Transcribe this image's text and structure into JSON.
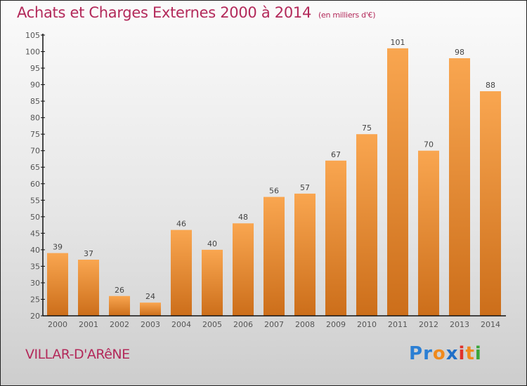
{
  "chart_data": {
    "type": "bar",
    "title": "Achats et Charges Externes 2000 à 2014",
    "subtitle": "(en milliers d'€)",
    "xlabel": "",
    "ylabel": "",
    "categories": [
      "2000",
      "2001",
      "2002",
      "2003",
      "2004",
      "2005",
      "2006",
      "2007",
      "2008",
      "2009",
      "2010",
      "2011",
      "2012",
      "2013",
      "2014"
    ],
    "values": [
      39,
      37,
      26,
      24,
      46,
      40,
      48,
      56,
      57,
      67,
      75,
      101,
      70,
      98,
      88
    ],
    "ylim": [
      20,
      105
    ],
    "yticks": [
      20,
      25,
      30,
      35,
      40,
      45,
      50,
      55,
      60,
      65,
      70,
      75,
      80,
      85,
      90,
      95,
      100,
      105
    ],
    "grid": false,
    "legend": "none",
    "bar_color_top": "#f9a650",
    "bar_color_bottom": "#cc6e1a"
  },
  "footer": {
    "city": "VILLAR-D'ARêNE",
    "logo_letters": [
      {
        "ch": "P",
        "color": "#2b7fd4"
      },
      {
        "ch": "r",
        "color": "#2b7fd4"
      },
      {
        "ch": "o",
        "color": "#f08a1c"
      },
      {
        "ch": "x",
        "color": "#1f6fc8"
      },
      {
        "ch": "i",
        "color": "#e0322b"
      },
      {
        "ch": "t",
        "color": "#f08a1c"
      },
      {
        "ch": "i",
        "color": "#3aa63a"
      }
    ]
  },
  "colors": {
    "title": "#b3295a",
    "axis": "#111111"
  }
}
